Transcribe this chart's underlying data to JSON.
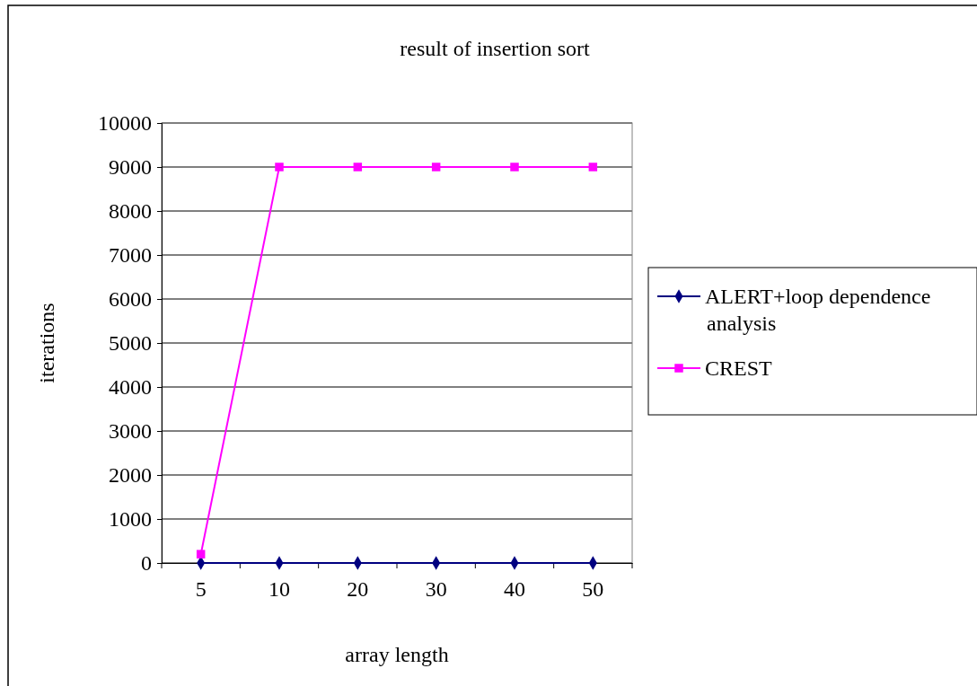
{
  "chart_data": {
    "type": "line",
    "title": "result of insertion sort",
    "xlabel": "array length",
    "ylabel": "iterations",
    "categories": [
      "5",
      "10",
      "20",
      "30",
      "40",
      "50"
    ],
    "series": [
      {
        "name": "ALERT+loop dependence analysis",
        "color": "#000080",
        "marker": "diamond",
        "values": [
          0,
          0,
          0,
          0,
          0,
          0
        ]
      },
      {
        "name": "CREST",
        "color": "#ff00ff",
        "marker": "square",
        "values": [
          200,
          9000,
          9000,
          9000,
          9000,
          9000
        ]
      }
    ],
    "ylim": [
      0,
      10000
    ],
    "yticks": [
      0,
      1000,
      2000,
      3000,
      4000,
      5000,
      6000,
      7000,
      8000,
      9000,
      10000
    ],
    "grid": "y",
    "legend": "right"
  }
}
